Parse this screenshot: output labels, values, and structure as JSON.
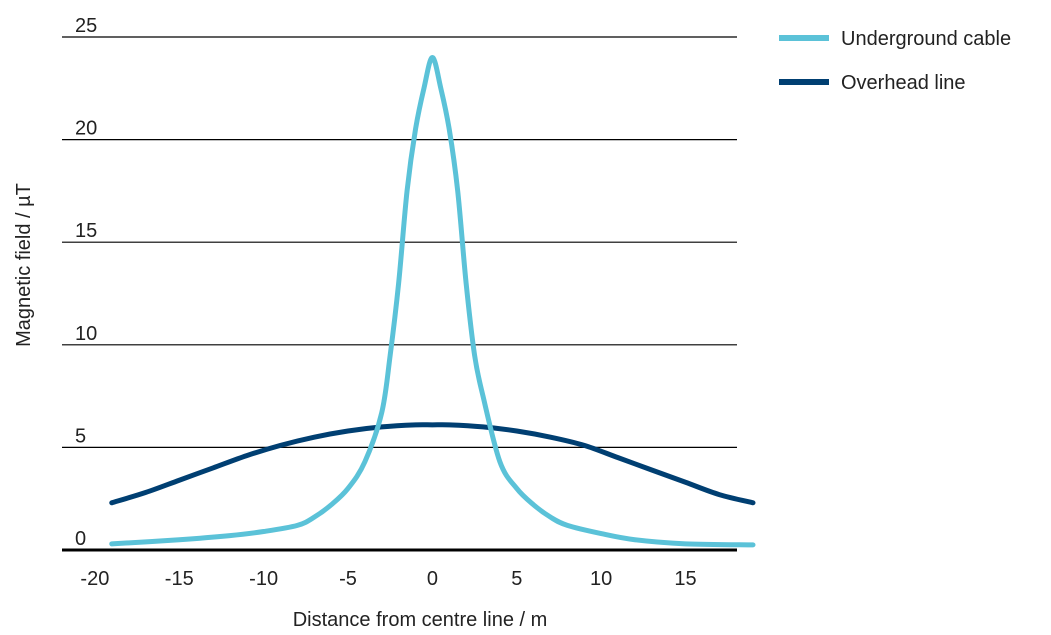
{
  "chart_data": {
    "type": "line",
    "title": "",
    "xlabel": "Distance from centre line / m",
    "ylabel": "Magnetic field / µT",
    "xlim": [
      -21,
      19
    ],
    "ylim": [
      0,
      25
    ],
    "x_ticks": [
      -20,
      -15,
      -10,
      -5,
      0,
      5,
      10,
      15
    ],
    "y_ticks": [
      0,
      5,
      10,
      15,
      20,
      25
    ],
    "grid": "horizontal",
    "legend": "top-right",
    "series": [
      {
        "name": "Underground cable",
        "color": "#5bc2d8",
        "x": [
          -19,
          -15,
          -12,
          -10,
          -8,
          -7,
          -6,
          -5,
          -4,
          -3,
          -2.5,
          -2,
          -1.5,
          -1,
          -0.5,
          0,
          0.5,
          1,
          1.5,
          2,
          2.5,
          3,
          4,
          5,
          6,
          7,
          8,
          10,
          12,
          15,
          19
        ],
        "y": [
          0.3,
          0.5,
          0.7,
          0.9,
          1.2,
          1.6,
          2.2,
          3.0,
          4.3,
          6.7,
          9.5,
          13.0,
          17.5,
          20.5,
          22.5,
          24.0,
          22.5,
          20.5,
          17.5,
          13.0,
          9.5,
          7.5,
          4.3,
          3.0,
          2.2,
          1.6,
          1.2,
          0.8,
          0.5,
          0.3,
          0.25
        ]
      },
      {
        "name": "Overhead line",
        "color": "#003f72",
        "x": [
          -19,
          -17,
          -15,
          -13,
          -11,
          -9,
          -7,
          -5,
          -3,
          -1,
          0,
          1,
          3,
          5,
          7,
          9,
          11,
          13,
          15,
          17,
          19
        ],
        "y": [
          2.3,
          2.8,
          3.4,
          4.0,
          4.6,
          5.1,
          5.5,
          5.8,
          6.0,
          6.1,
          6.1,
          6.1,
          6.0,
          5.8,
          5.5,
          5.1,
          4.5,
          3.9,
          3.3,
          2.7,
          2.3
        ]
      }
    ]
  }
}
